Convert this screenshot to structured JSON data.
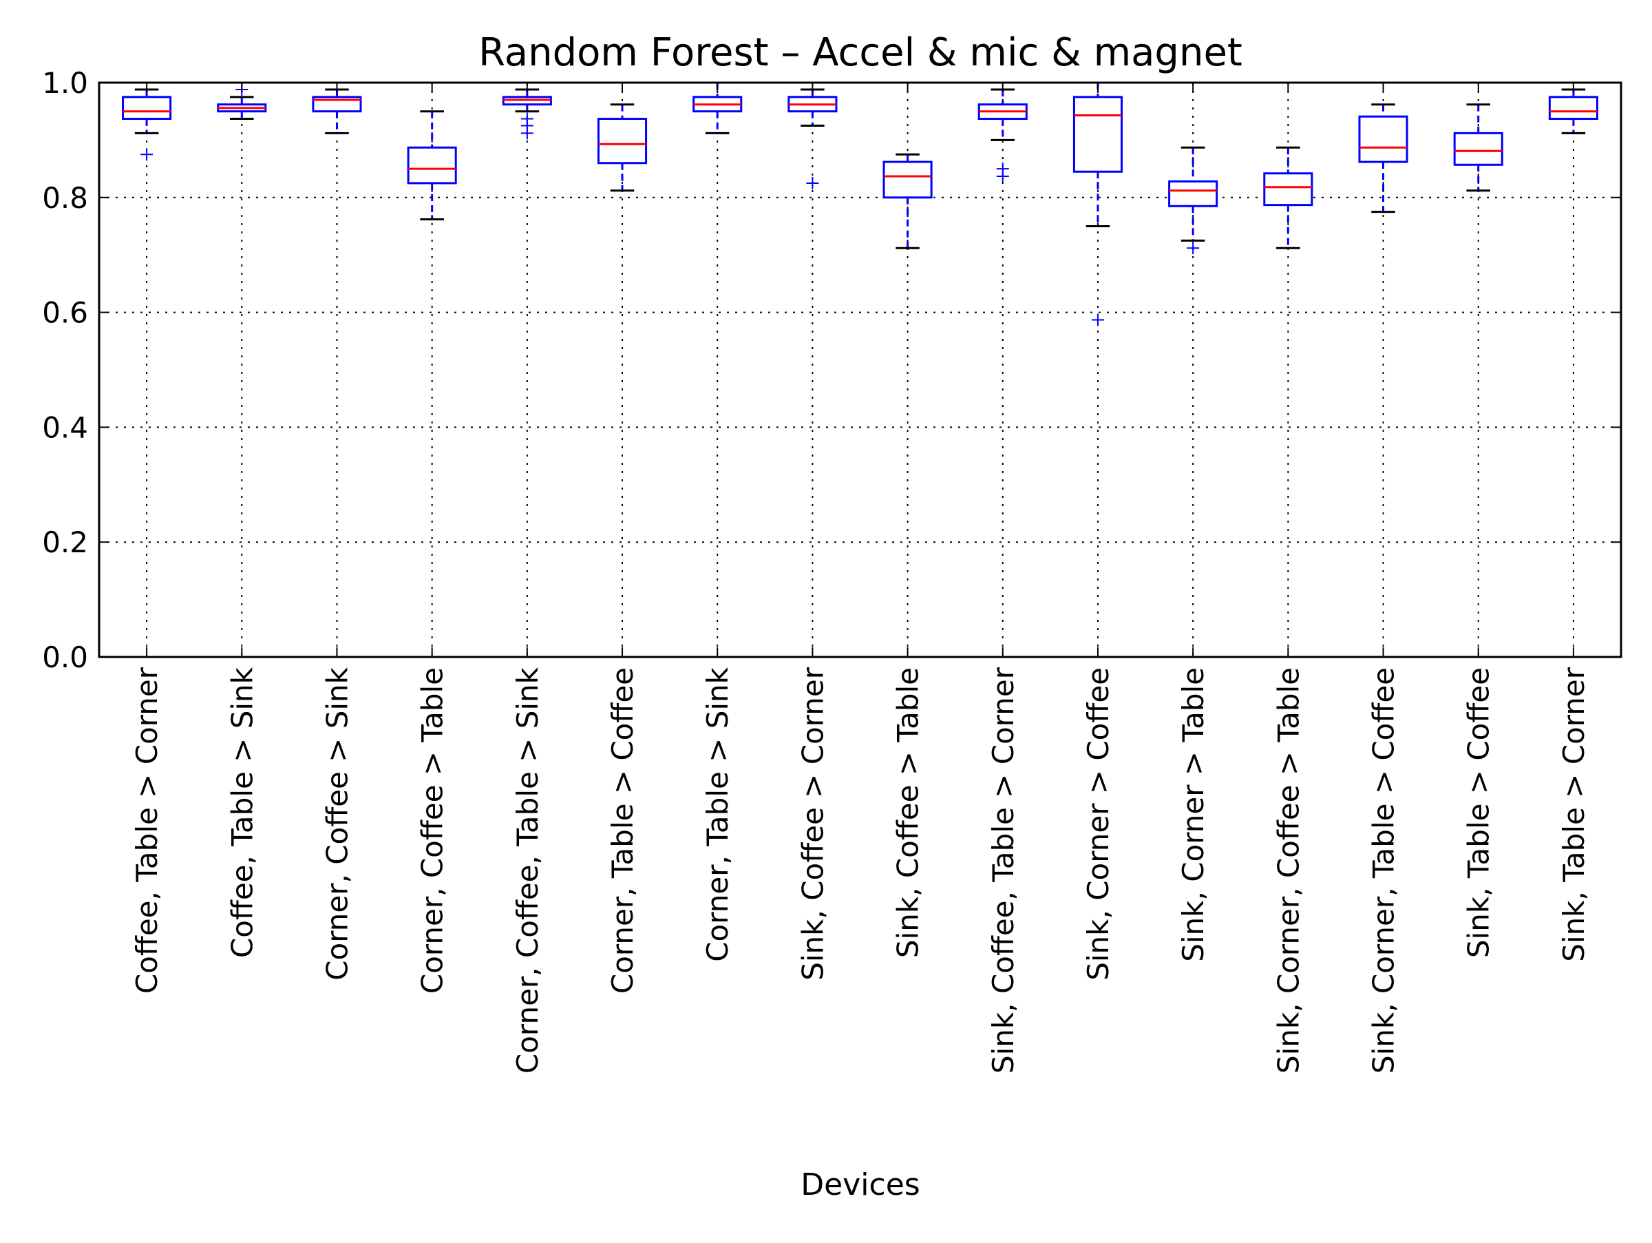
{
  "chart_data": {
    "type": "box",
    "title": "Random Forest – Accel & mic & magnet",
    "xlabel": "Devices",
    "ylabel": "",
    "ylim": [
      0.0,
      1.0
    ],
    "yticks": [
      "0.0",
      "0.2",
      "0.4",
      "0.6",
      "0.8",
      "1.0"
    ],
    "grid": true,
    "colors": {
      "box": "#0000ff",
      "median": "#ff0000",
      "whisker": "#0000ff",
      "cap": "#000000",
      "flier": "#0000ff"
    },
    "categories": [
      "Coffee, Table > Corner",
      "Coffee, Table > Sink",
      "Corner, Coffee > Sink",
      "Corner, Coffee > Table",
      "Corner, Coffee, Table > Sink",
      "Corner, Table > Coffee",
      "Corner, Table > Sink",
      "Sink, Coffee > Corner",
      "Sink, Coffee > Table",
      "Sink, Coffee, Table > Corner",
      "Sink, Corner > Coffee",
      "Sink, Corner > Table",
      "Sink, Corner, Coffee > Table",
      "Sink, Corner, Table > Coffee",
      "Sink, Table > Coffee",
      "Sink, Table > Corner"
    ],
    "boxes": [
      {
        "whislo": 0.912,
        "q1": 0.937,
        "med": 0.95,
        "q3": 0.975,
        "whishi": 0.988,
        "fliers": [
          0.875
        ]
      },
      {
        "whislo": 0.937,
        "q1": 0.95,
        "med": 0.956,
        "q3": 0.962,
        "whishi": 0.975,
        "fliers": [
          0.988
        ]
      },
      {
        "whislo": 0.912,
        "q1": 0.95,
        "med": 0.97,
        "q3": 0.975,
        "whishi": 0.988,
        "fliers": []
      },
      {
        "whislo": 0.762,
        "q1": 0.825,
        "med": 0.85,
        "q3": 0.887,
        "whishi": 0.95,
        "fliers": []
      },
      {
        "whislo": 0.95,
        "q1": 0.962,
        "med": 0.97,
        "q3": 0.975,
        "whishi": 0.988,
        "fliers": [
          0.937,
          0.925,
          0.912
        ]
      },
      {
        "whislo": 0.812,
        "q1": 0.86,
        "med": 0.893,
        "q3": 0.937,
        "whishi": 0.962,
        "fliers": []
      },
      {
        "whislo": 0.912,
        "q1": 0.95,
        "med": 0.962,
        "q3": 0.975,
        "whishi": 1.0,
        "fliers": []
      },
      {
        "whislo": 0.925,
        "q1": 0.95,
        "med": 0.962,
        "q3": 0.975,
        "whishi": 0.988,
        "fliers": [
          0.825
        ]
      },
      {
        "whislo": 0.712,
        "q1": 0.8,
        "med": 0.837,
        "q3": 0.862,
        "whishi": 0.875,
        "fliers": []
      },
      {
        "whislo": 0.9,
        "q1": 0.937,
        "med": 0.95,
        "q3": 0.962,
        "whishi": 0.988,
        "fliers": [
          0.85,
          0.837
        ]
      },
      {
        "whislo": 0.75,
        "q1": 0.845,
        "med": 0.943,
        "q3": 0.975,
        "whishi": 1.0,
        "fliers": [
          0.587
        ]
      },
      {
        "whislo": 0.725,
        "q1": 0.785,
        "med": 0.812,
        "q3": 0.828,
        "whishi": 0.887,
        "fliers": [
          0.712
        ]
      },
      {
        "whislo": 0.712,
        "q1": 0.787,
        "med": 0.818,
        "q3": 0.842,
        "whishi": 0.887,
        "fliers": []
      },
      {
        "whislo": 0.775,
        "q1": 0.862,
        "med": 0.887,
        "q3": 0.941,
        "whishi": 0.962,
        "fliers": []
      },
      {
        "whislo": 0.812,
        "q1": 0.857,
        "med": 0.881,
        "q3": 0.912,
        "whishi": 0.962,
        "fliers": []
      },
      {
        "whislo": 0.912,
        "q1": 0.937,
        "med": 0.95,
        "q3": 0.975,
        "whishi": 0.988,
        "fliers": []
      }
    ]
  }
}
